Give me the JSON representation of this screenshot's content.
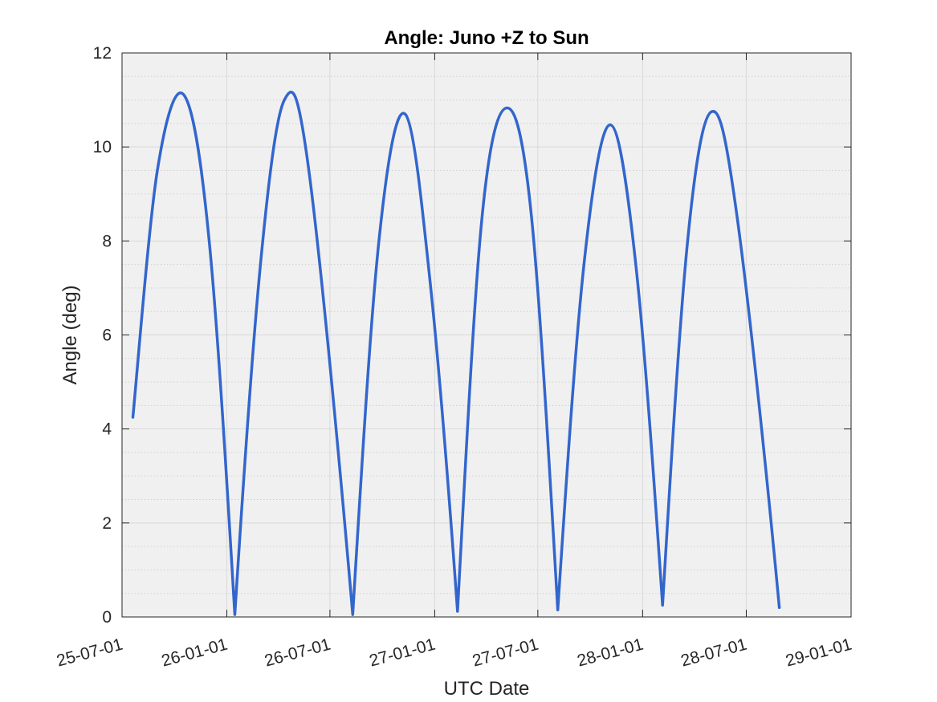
{
  "chart_data": {
    "type": "line",
    "title": "Angle: Juno +Z to Sun",
    "xlabel": "UTC Date",
    "ylabel": "Angle (deg)",
    "x_tick_labels": [
      "25-07-01",
      "26-01-01",
      "26-07-01",
      "27-01-01",
      "27-07-01",
      "28-01-01",
      "28-07-01",
      "29-01-01"
    ],
    "y_tick_labels": [
      "0",
      "2",
      "4",
      "6",
      "8",
      "10",
      "12"
    ],
    "ylim": [
      0,
      12
    ],
    "xlim": [
      "2025-07-01",
      "2029-01-01"
    ],
    "grid": true,
    "minor_grid": true,
    "line_color": "#3366cc",
    "plot_background": "#f0f0f0",
    "series": [
      {
        "points": [
          [
            "2025-07-20",
            4.25
          ],
          [
            "2025-09-01",
            9.5
          ],
          [
            "2025-10-18",
            11.1
          ],
          [
            "2025-12-01",
            8.0
          ],
          [
            "2026-01-15",
            0.05
          ],
          [
            "2026-03-01",
            7.5
          ],
          [
            "2026-04-12",
            11.0
          ],
          [
            "2026-05-25",
            9.5
          ],
          [
            "2026-08-10",
            0.05
          ],
          [
            "2026-09-25",
            8.0
          ],
          [
            "2026-11-10",
            10.7
          ],
          [
            "2026-12-25",
            7.0
          ],
          [
            "2027-02-10",
            0.12
          ],
          [
            "2027-03-25",
            8.5
          ],
          [
            "2027-05-08",
            10.83
          ],
          [
            "2027-06-20",
            8.5
          ],
          [
            "2027-08-05",
            0.15
          ],
          [
            "2027-09-20",
            7.5
          ],
          [
            "2027-11-05",
            10.47
          ],
          [
            "2027-12-20",
            7.5
          ],
          [
            "2028-02-05",
            0.25
          ],
          [
            "2028-03-20",
            8.0
          ],
          [
            "2028-05-01",
            10.75
          ],
          [
            "2028-06-15",
            8.5
          ],
          [
            "2028-08-28",
            0.2
          ]
        ]
      }
    ]
  }
}
